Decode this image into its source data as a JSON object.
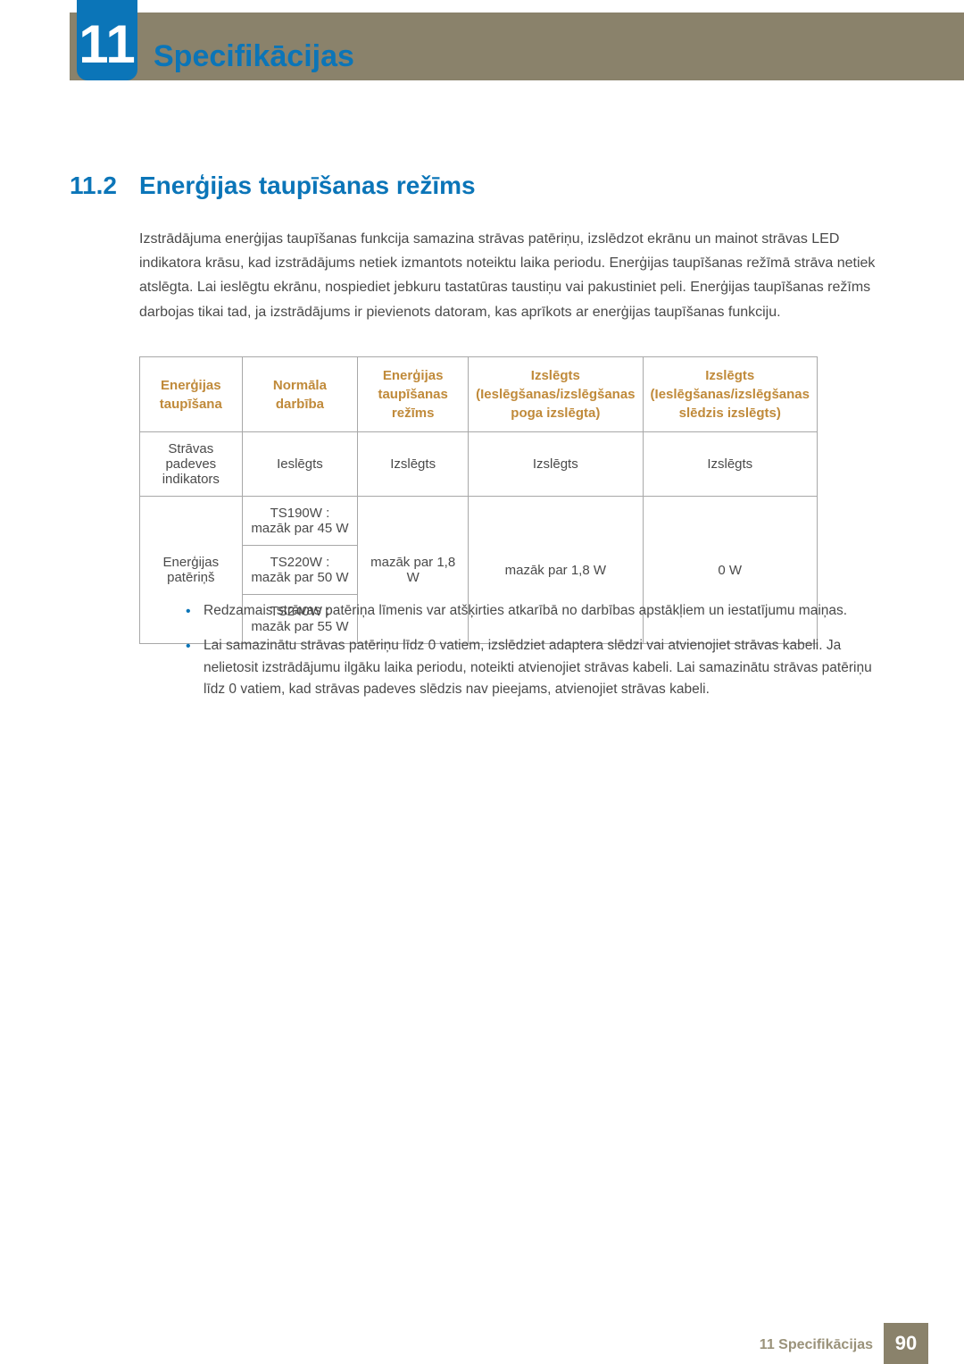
{
  "chapter": {
    "number": "11",
    "title": "Specifikācijas"
  },
  "section": {
    "number": "11.2",
    "title": "Enerģijas taupīšanas režīms"
  },
  "body_paragraph": "Izstrādājuma enerģijas taupīšanas funkcija samazina strāvas patēriņu, izslēdzot ekrānu un mainot strāvas LED indikatora krāsu, kad izstrādājums netiek izmantots noteiktu laika periodu. Enerģijas taupīšanas režīmā strāva netiek atslēgta. Lai ieslēgtu ekrānu, nospiediet jebkuru tastatūras taustiņu vai pakustiniet peli. Enerģijas taupīšanas režīms darbojas tikai tad, ja izstrādājums ir pievienots datoram, kas aprīkots ar enerģijas taupīšanas funkciju.",
  "table": {
    "headers": {
      "c1": "Enerģijas taupīšana",
      "c2": "Normāla darbība",
      "c3": "Enerģijas taupīšanas režīms",
      "c4": "Izslēgts (Ieslēgšanas/izslēgšanas poga izslēgta)",
      "c5": "Izslēgts (Ieslēgšanas/izslēgšanas slēdzis izslēgts)"
    },
    "row1": {
      "label": "Strāvas padeves indikators",
      "c2": "Ieslēgts",
      "c3": "Izslēgts",
      "c4": "Izslēgts",
      "c5": "Izslēgts"
    },
    "row2": {
      "label": "Enerģijas patēriņš",
      "models": {
        "m1": "TS190W : mazāk par 45 W",
        "m2": "TS220W : mazāk par 50 W",
        "m3": "TS240W : mazāk par 55 W"
      },
      "c3": "mazāk par 1,8 W",
      "c4": "mazāk par 1,8 W",
      "c5": "0 W"
    }
  },
  "notes": {
    "n1": "Redzamais strāvas patēriņa līmenis var atšķirties atkarībā no darbības apstākļiem un iestatījumu maiņas.",
    "n2": "Lai samazinātu strāvas patēriņu līdz 0 vatiem, izslēdziet adaptera slēdzi vai atvienojiet strāvas kabeli. Ja nelietosit izstrādājumu ilgāku laika periodu, noteikti atvienojiet strāvas kabeli. Lai samazinātu strāvas patēriņu līdz 0 vatiem, kad strāvas padeves slēdzis nav pieejams, atvienojiet strāvas kabeli."
  },
  "footer": {
    "chapter_ref": "11 Specifikācijas",
    "page": "90"
  }
}
